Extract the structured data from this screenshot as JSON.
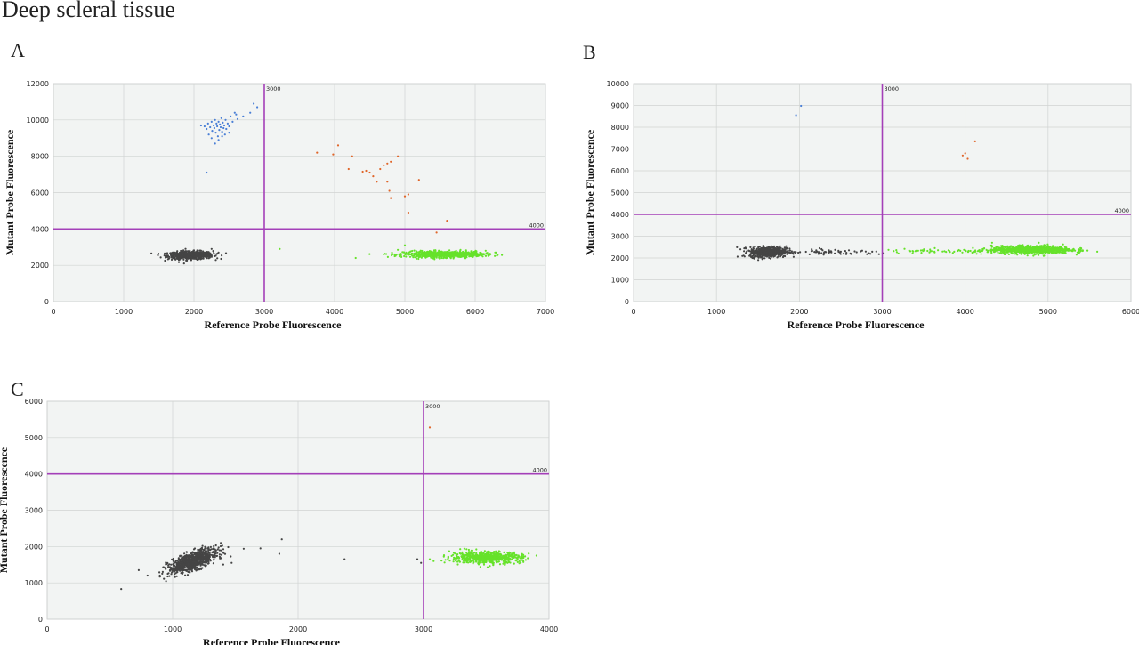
{
  "page_title": "Deep scleral tissue",
  "colors": {
    "plot_bg": "#f2f4f3",
    "grid": "#d0d3d2",
    "threshold_line": "#a43fb8",
    "negative": "#454545",
    "mutant_only": "#4a7fd6",
    "double_positive": "#e0662a",
    "reference_only": "#66e22a"
  },
  "chart_data": [
    {
      "panel": "A",
      "type": "scatter",
      "xlabel": "Reference Probe Fluorescence",
      "ylabel": "Mutant Probe Fluorescence",
      "xlim": [
        0,
        7000
      ],
      "ylim": [
        0,
        12000
      ],
      "xticks": [
        0,
        1000,
        2000,
        3000,
        4000,
        5000,
        6000,
        7000
      ],
      "yticks": [
        0,
        2000,
        4000,
        6000,
        8000,
        10000,
        12000
      ],
      "thresholds": {
        "x": 3000,
        "y": 4000,
        "x_label": "3000",
        "y_label": "4000"
      },
      "clusters": [
        {
          "group": "negative",
          "count": 650,
          "cx": 1950,
          "cy": 2550,
          "sx": 160,
          "sy": 110,
          "tilt": 0.05
        },
        {
          "group": "reference_only",
          "count": 750,
          "cx": 5550,
          "cy": 2600,
          "sx": 280,
          "sy": 85,
          "tilt": 0
        }
      ],
      "points": [
        {
          "group": "mutant_only",
          "xy": [
            [
              2150,
              9650
            ],
            [
              2180,
              9500
            ],
            [
              2200,
              9800
            ],
            [
              2210,
              9200
            ],
            [
              2230,
              9600
            ],
            [
              2250,
              9900
            ],
            [
              2260,
              9400
            ],
            [
              2280,
              9700
            ],
            [
              2290,
              9550
            ],
            [
              2300,
              10000
            ],
            [
              2310,
              9300
            ],
            [
              2320,
              9800
            ],
            [
              2330,
              9650
            ],
            [
              2340,
              9100
            ],
            [
              2350,
              9900
            ],
            [
              2360,
              9450
            ],
            [
              2370,
              9750
            ],
            [
              2380,
              9600
            ],
            [
              2390,
              10100
            ],
            [
              2400,
              9350
            ],
            [
              2410,
              9850
            ],
            [
              2420,
              9550
            ],
            [
              2430,
              9700
            ],
            [
              2440,
              9200
            ],
            [
              2450,
              10000
            ],
            [
              2460,
              9500
            ],
            [
              2480,
              9800
            ],
            [
              2500,
              9650
            ],
            [
              2520,
              10200
            ],
            [
              2550,
              9900
            ],
            [
              2580,
              10400
            ],
            [
              2600,
              10300
            ],
            [
              2620,
              10050
            ],
            [
              2700,
              10200
            ],
            [
              2800,
              10400
            ],
            [
              2850,
              10900
            ],
            [
              2900,
              10700
            ],
            [
              2180,
              7100
            ],
            [
              2300,
              8700
            ],
            [
              2250,
              9000
            ],
            [
              2350,
              8900
            ],
            [
              2400,
              9100
            ],
            [
              2500,
              9300
            ],
            [
              2100,
              9700
            ]
          ]
        },
        {
          "group": "double_positive",
          "xy": [
            [
              3750,
              8200
            ],
            [
              3980,
              8100
            ],
            [
              4050,
              8600
            ],
            [
              4200,
              7300
            ],
            [
              4250,
              8000
            ],
            [
              4450,
              7200
            ],
            [
              4550,
              6900
            ],
            [
              4600,
              6600
            ],
            [
              4650,
              7300
            ],
            [
              4700,
              7500
            ],
            [
              4750,
              7600
            ],
            [
              4780,
              6100
            ],
            [
              4800,
              5700
            ],
            [
              4750,
              6600
            ],
            [
              4800,
              7700
            ],
            [
              4900,
              8000
            ],
            [
              5000,
              5800
            ],
            [
              5050,
              5900
            ],
            [
              5050,
              4900
            ],
            [
              5200,
              6700
            ],
            [
              5450,
              3800
            ],
            [
              5600,
              4450
            ],
            [
              4500,
              7100
            ],
            [
              4400,
              7150
            ]
          ]
        },
        {
          "group": "reference_only",
          "xy": [
            [
              3220,
              2900
            ],
            [
              4300,
              2400
            ],
            [
              4700,
              2600
            ],
            [
              5000,
              3100
            ],
            [
              6300,
              2700
            ],
            [
              4900,
              2850
            ],
            [
              6150,
              2800
            ]
          ]
        },
        {
          "group": "negative",
          "xy": [
            [
              2350,
              2700
            ],
            [
              2250,
              2900
            ]
          ]
        }
      ]
    },
    {
      "panel": "B",
      "type": "scatter",
      "xlabel": "Reference Probe Fluorescence",
      "ylabel": "Mutant Probe Fluorescence",
      "xlim": [
        0,
        6000
      ],
      "ylim": [
        0,
        10000
      ],
      "xticks": [
        0,
        1000,
        2000,
        3000,
        4000,
        5000,
        6000
      ],
      "yticks": [
        0,
        1000,
        2000,
        3000,
        4000,
        5000,
        6000,
        7000,
        8000,
        9000,
        10000
      ],
      "thresholds": {
        "x": 3000,
        "y": 4000,
        "x_label": "3000",
        "y_label": "4000"
      },
      "clusters": [
        {
          "group": "negative",
          "count": 600,
          "cx": 1620,
          "cy": 2280,
          "sx": 110,
          "sy": 120,
          "tilt": 0.1
        },
        {
          "group": "reference_only",
          "count": 800,
          "cx": 4800,
          "cy": 2380,
          "sx": 240,
          "sy": 90,
          "tilt": 0
        },
        {
          "group": "negative",
          "count": 80,
          "cx": 2400,
          "cy": 2250,
          "sx": 380,
          "sy": 60,
          "tilt": 0
        },
        {
          "group": "reference_only",
          "count": 70,
          "cx": 3800,
          "cy": 2300,
          "sx": 420,
          "sy": 60,
          "tilt": 0
        }
      ],
      "points": [
        {
          "group": "mutant_only",
          "xy": [
            [
              1960,
              8550
            ],
            [
              2020,
              8980
            ]
          ]
        },
        {
          "group": "double_positive",
          "xy": [
            [
              3970,
              6700
            ],
            [
              4000,
              6800
            ],
            [
              4030,
              6550
            ],
            [
              4120,
              7350
            ]
          ]
        }
      ]
    },
    {
      "panel": "C",
      "type": "scatter",
      "xlabel": "Reference Probe Fluorescence",
      "ylabel": "Mutant Probe Fluorescence",
      "xlim": [
        0,
        4000
      ],
      "ylim": [
        0,
        6000
      ],
      "xticks": [
        0,
        1000,
        2000,
        3000,
        4000
      ],
      "yticks": [
        0,
        1000,
        2000,
        3000,
        4000,
        5000,
        6000
      ],
      "thresholds": {
        "x": 3000,
        "y": 4000,
        "x_label": "3000",
        "y_label": "4000"
      },
      "clusters": [
        {
          "group": "negative",
          "count": 850,
          "cx": 1160,
          "cy": 1600,
          "sx": 95,
          "sy": 120,
          "tilt": 1.1
        },
        {
          "group": "reference_only",
          "count": 650,
          "cx": 3500,
          "cy": 1700,
          "sx": 140,
          "sy": 80,
          "tilt": 0
        }
      ],
      "points": [
        {
          "group": "negative",
          "xy": [
            [
              590,
              830
            ],
            [
              730,
              1350
            ],
            [
              800,
              1200
            ],
            [
              1470,
              1550
            ],
            [
              1700,
              1950
            ],
            [
              1850,
              1800
            ],
            [
              1870,
              2200
            ],
            [
              2370,
              1650
            ],
            [
              2950,
              1650
            ],
            [
              2980,
              1550
            ]
          ]
        },
        {
          "group": "reference_only",
          "xy": [
            [
              3080,
              1600
            ],
            [
              3900,
              1750
            ],
            [
              3050,
              1650
            ]
          ]
        },
        {
          "group": "double_positive",
          "xy": [
            [
              3050,
              5280
            ]
          ]
        }
      ]
    }
  ]
}
